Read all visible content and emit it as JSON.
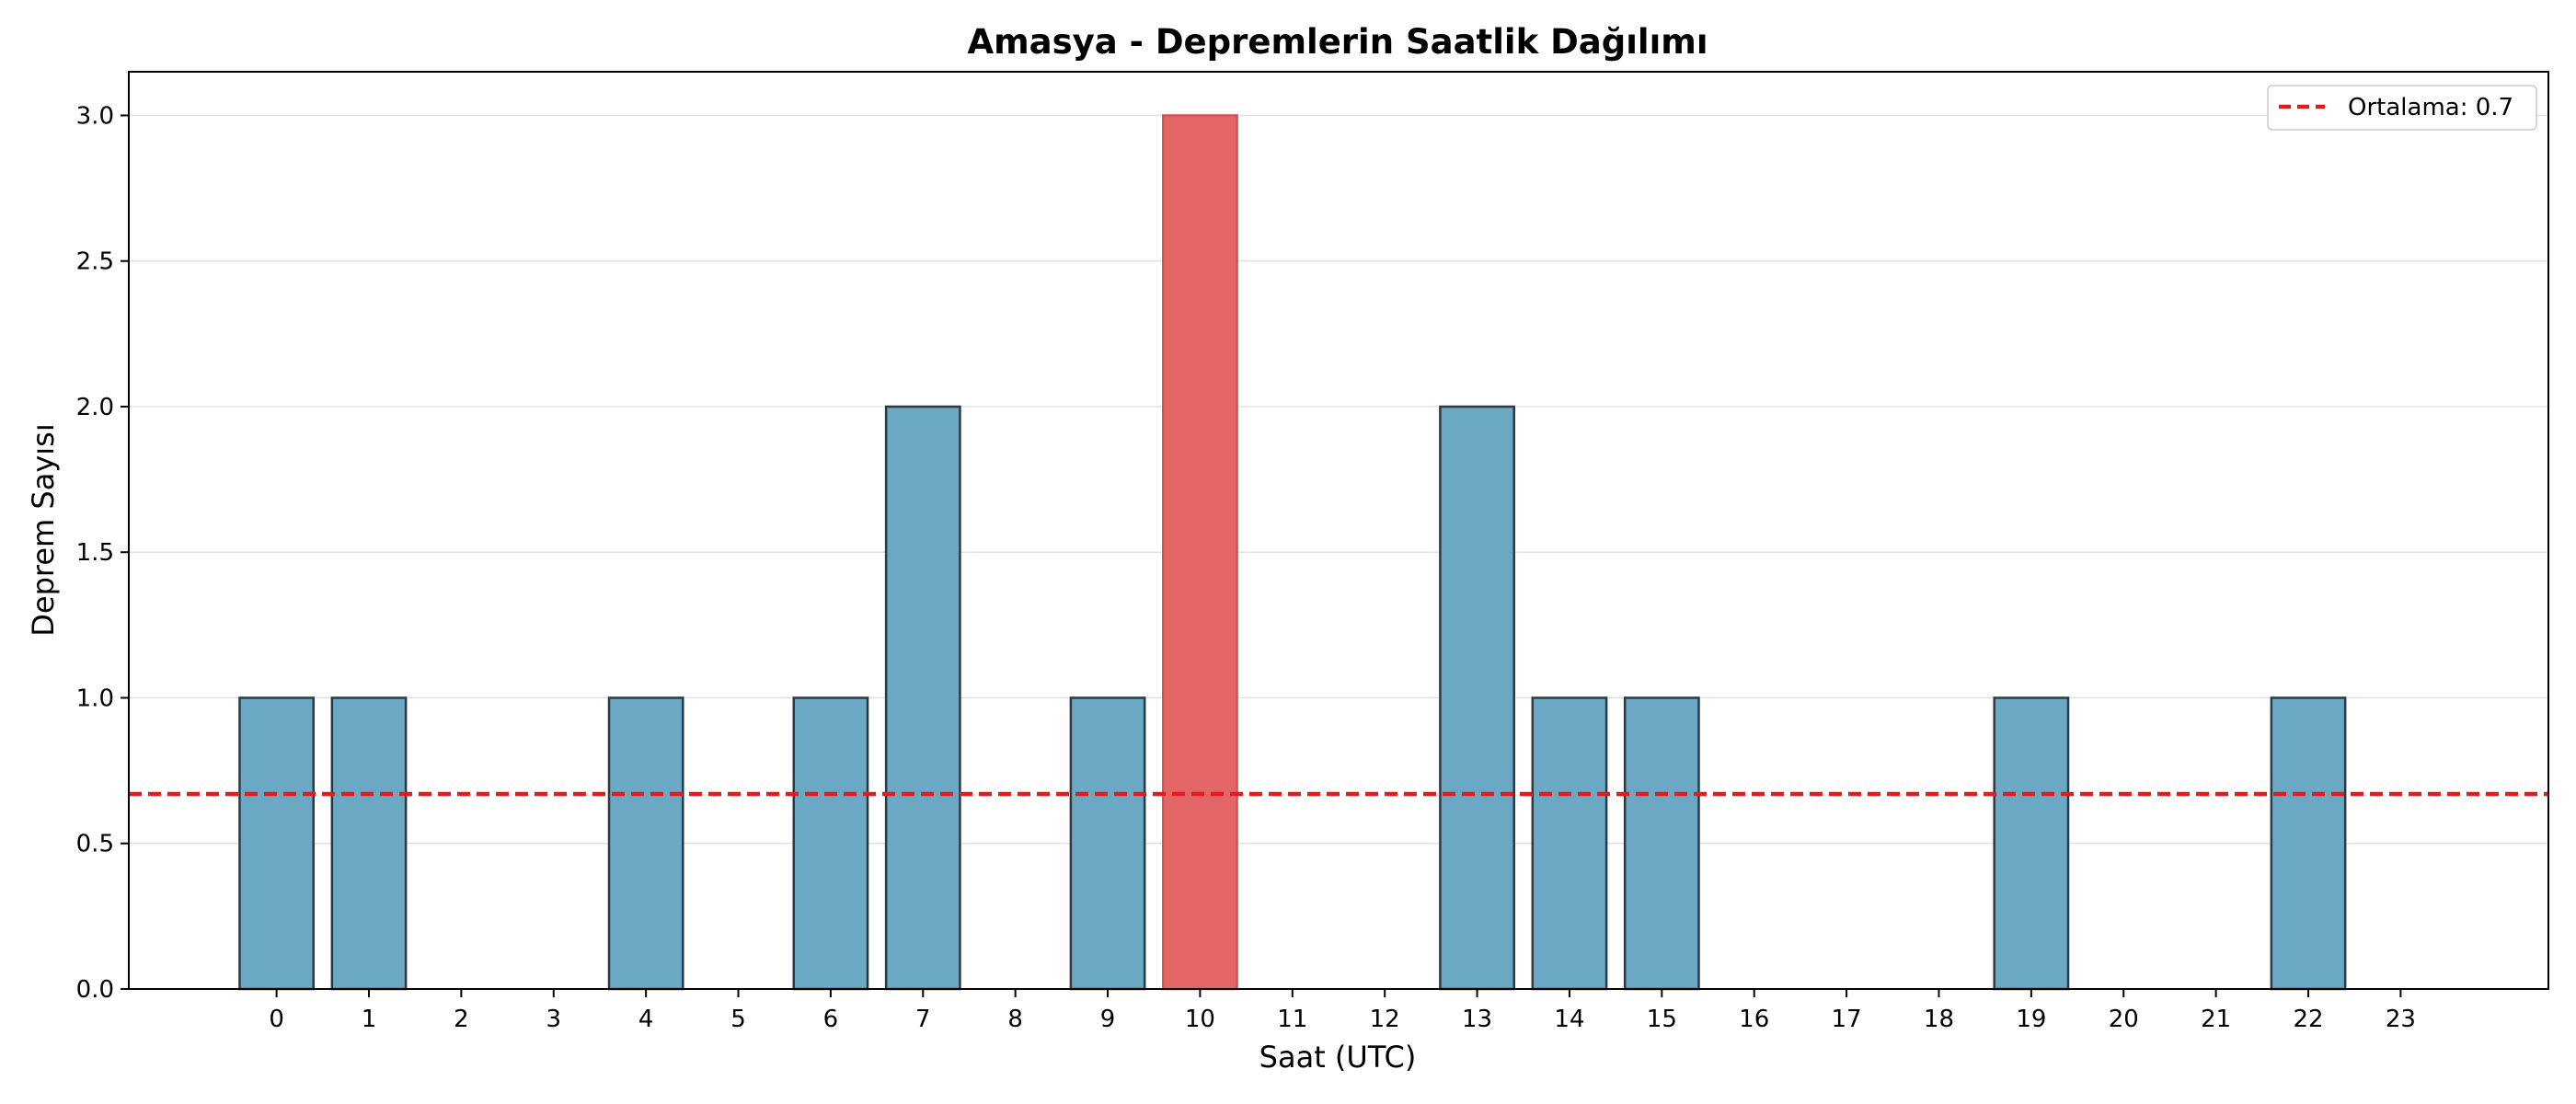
{
  "chart_data": {
    "type": "bar",
    "title": "Amasya - Depremlerin Saatlik Dağılımı",
    "xlabel": "Saat (UTC)",
    "ylabel": "Deprem Sayısı",
    "categories": [
      "0",
      "1",
      "2",
      "3",
      "4",
      "5",
      "6",
      "7",
      "8",
      "9",
      "10",
      "11",
      "12",
      "13",
      "14",
      "15",
      "16",
      "17",
      "18",
      "19",
      "20",
      "21",
      "22",
      "23"
    ],
    "values": [
      1,
      1,
      0,
      0,
      1,
      0,
      1,
      2,
      0,
      1,
      3,
      0,
      0,
      2,
      1,
      1,
      0,
      0,
      0,
      1,
      0,
      0,
      1,
      0
    ],
    "ylim": [
      0,
      3.15
    ],
    "yticks": [
      0.0,
      0.5,
      1.0,
      1.5,
      2.0,
      2.5,
      3.0
    ],
    "ytick_labels": [
      "0.0",
      "0.5",
      "1.0",
      "1.5",
      "2.0",
      "2.5",
      "3.0"
    ],
    "grid": "y",
    "mean_line": {
      "value": 0.67,
      "label": "Ortalama: 0.7",
      "color": "#e41a1c",
      "style": "dashed"
    },
    "legend": {
      "position": "top-right",
      "entries": [
        "Ortalama: 0.7"
      ]
    },
    "colors": {
      "bar": "#6aa8c4",
      "highlight": "#e36666",
      "edge": "#2b3a44",
      "highlight_edge": "#d9504f"
    },
    "highlight_category": "10"
  }
}
